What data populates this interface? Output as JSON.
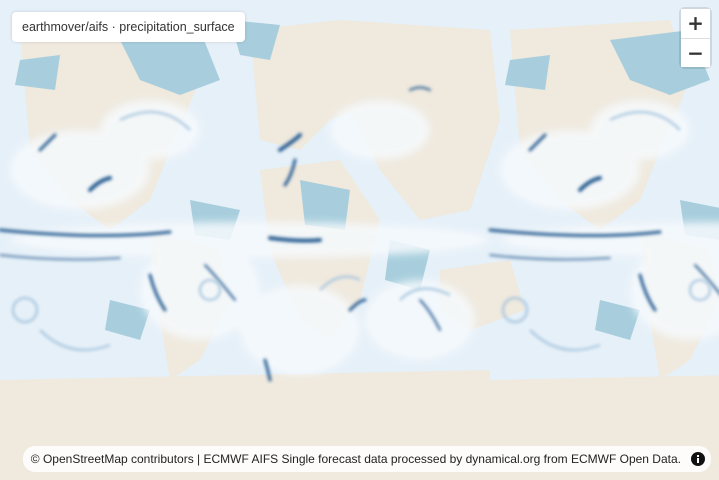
{
  "header": {
    "title": "earthmover/aifs · precipitation_surface"
  },
  "zoom": {
    "in": "+",
    "out": "−"
  },
  "attribution": "© OpenStreetMap contributors | ECMWF AIFS Single forecast data processed by dynamical.org from ECMWF Open Data."
}
